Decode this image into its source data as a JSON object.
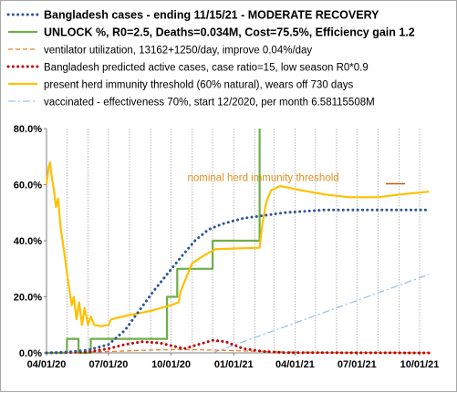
{
  "chart_data": {
    "type": "line",
    "title": "",
    "xlabel": "",
    "ylabel": "",
    "x_ticks": [
      "04/01/20",
      "07/01/20",
      "10/01/20",
      "01/01/21",
      "04/01/21",
      "07/01/21",
      "10/01/21"
    ],
    "xlim": [
      "2020-04-01",
      "2021-10-01"
    ],
    "y_ticks": [
      "0.0%",
      "20.0%",
      "40.0%",
      "60.0%",
      "80.0%"
    ],
    "ylim": [
      0,
      80
    ],
    "grid": "vertical",
    "legend_position": "top",
    "annotations": [
      {
        "text": "nominal herd immunity threshold",
        "x": "2020-10-25",
        "y": 60
      }
    ],
    "series": [
      {
        "name": "Bangladesh cases - ending 11/15/21 - MODERATE RECOVERY",
        "color": "#2f5597",
        "style": "dotted",
        "points": [
          [
            "2020-04-01",
            0
          ],
          [
            "2020-05-01",
            0.3
          ],
          [
            "2020-06-01",
            1
          ],
          [
            "2020-07-01",
            3
          ],
          [
            "2020-07-25",
            8
          ],
          [
            "2020-08-15",
            15
          ],
          [
            "2020-09-05",
            22
          ],
          [
            "2020-09-25",
            28
          ],
          [
            "2020-10-15",
            34
          ],
          [
            "2020-11-05",
            40
          ],
          [
            "2020-11-25",
            44
          ],
          [
            "2020-12-15",
            46
          ],
          [
            "2021-01-15",
            48
          ],
          [
            "2021-02-15",
            49
          ],
          [
            "2021-03-15",
            50
          ],
          [
            "2021-04-15",
            50.5
          ],
          [
            "2021-05-15",
            51
          ],
          [
            "2021-06-15",
            51
          ],
          [
            "2021-08-01",
            51
          ],
          [
            "2021-10-15",
            51
          ]
        ]
      },
      {
        "name": "UNLOCK %, R0=2.5,  Deaths=0.034M, Cost=75.5%, Efficiency gain 1.2",
        "color": "#70ad47",
        "style": "solid",
        "points": [
          [
            "2020-04-01",
            0
          ],
          [
            "2020-05-01",
            0
          ],
          [
            "2020-05-01",
            5
          ],
          [
            "2020-05-18",
            5
          ],
          [
            "2020-05-18",
            0
          ],
          [
            "2020-06-05",
            0
          ],
          [
            "2020-06-05",
            5
          ],
          [
            "2020-09-25",
            5
          ],
          [
            "2020-09-25",
            20
          ],
          [
            "2020-10-10",
            20
          ],
          [
            "2020-10-10",
            30
          ],
          [
            "2020-12-01",
            30
          ],
          [
            "2020-12-01",
            40
          ],
          [
            "2021-02-08",
            40
          ],
          [
            "2021-02-08",
            80
          ]
        ]
      },
      {
        "name": "ventilator utilization, 13162+1250/day, improve 0.04%/day",
        "color": "#ed7d31",
        "style": "dashed",
        "points": [
          [
            "2020-04-01",
            0
          ],
          [
            "2020-06-01",
            0.3
          ],
          [
            "2020-07-15",
            0.6
          ],
          [
            "2020-09-01",
            1
          ],
          [
            "2020-10-15",
            1.2
          ],
          [
            "2020-12-01",
            1
          ],
          [
            "2021-02-01",
            0.6
          ],
          [
            "2021-04-01",
            0.3
          ],
          [
            "2021-06-01",
            0.1
          ],
          [
            "2021-10-15",
            0
          ]
        ]
      },
      {
        "name": "Bangladesh predicted active cases, case ratio=15, low season R0*0.9",
        "color": "#c00000",
        "style": "dotted",
        "points": [
          [
            "2020-04-01",
            0
          ],
          [
            "2020-06-01",
            0.3
          ],
          [
            "2020-07-01",
            1.5
          ],
          [
            "2020-07-25",
            3
          ],
          [
            "2020-08-20",
            4
          ],
          [
            "2020-09-15",
            3.5
          ],
          [
            "2020-10-20",
            1.5
          ],
          [
            "2020-11-10",
            3
          ],
          [
            "2020-12-01",
            4.5
          ],
          [
            "2020-12-20",
            4
          ],
          [
            "2021-01-15",
            1.5
          ],
          [
            "2021-02-15",
            0.5
          ],
          [
            "2021-03-15",
            0.1
          ],
          [
            "2021-10-15",
            0
          ]
        ]
      },
      {
        "name": "present herd immunity threshold (60% natural), wears off 730 days",
        "color": "#ffc000",
        "style": "solid",
        "points": [
          [
            "2020-04-01",
            60
          ],
          [
            "2020-04-04",
            66
          ],
          [
            "2020-04-06",
            68
          ],
          [
            "2020-04-09",
            62
          ],
          [
            "2020-04-12",
            58
          ],
          [
            "2020-04-15",
            52
          ],
          [
            "2020-04-18",
            55
          ],
          [
            "2020-04-22",
            44
          ],
          [
            "2020-04-27",
            36
          ],
          [
            "2020-05-03",
            25
          ],
          [
            "2020-05-08",
            17
          ],
          [
            "2020-05-11",
            20
          ],
          [
            "2020-05-15",
            12
          ],
          [
            "2020-05-19",
            18
          ],
          [
            "2020-05-23",
            10
          ],
          [
            "2020-05-27",
            16
          ],
          [
            "2020-06-01",
            10
          ],
          [
            "2020-06-05",
            13
          ],
          [
            "2020-06-10",
            10
          ],
          [
            "2020-06-20",
            9.5
          ],
          [
            "2020-07-01",
            10
          ],
          [
            "2020-07-05",
            12
          ],
          [
            "2020-08-01",
            13.5
          ],
          [
            "2020-09-01",
            15
          ],
          [
            "2020-10-01",
            17
          ],
          [
            "2020-10-12",
            18
          ],
          [
            "2020-10-15",
            22
          ],
          [
            "2020-11-01",
            32
          ],
          [
            "2020-11-20",
            35
          ],
          [
            "2020-12-05",
            37
          ],
          [
            "2021-02-08",
            37.5
          ],
          [
            "2021-02-12",
            46
          ],
          [
            "2021-02-18",
            54
          ],
          [
            "2021-02-25",
            58
          ],
          [
            "2021-03-10",
            59.5
          ],
          [
            "2021-04-10",
            58
          ],
          [
            "2021-05-15",
            56.5
          ],
          [
            "2021-06-20",
            55.5
          ],
          [
            "2021-08-01",
            55.5
          ],
          [
            "2021-09-01",
            56.5
          ],
          [
            "2021-10-15",
            57.5
          ]
        ]
      },
      {
        "name": "vaccinated - effectiveness 70%, start 12/2020, per month 6.58115508M",
        "color": "#9dc3e6",
        "style": "dashdot",
        "points": [
          [
            "2020-12-01",
            0
          ],
          [
            "2021-10-15",
            28
          ]
        ]
      }
    ]
  }
}
